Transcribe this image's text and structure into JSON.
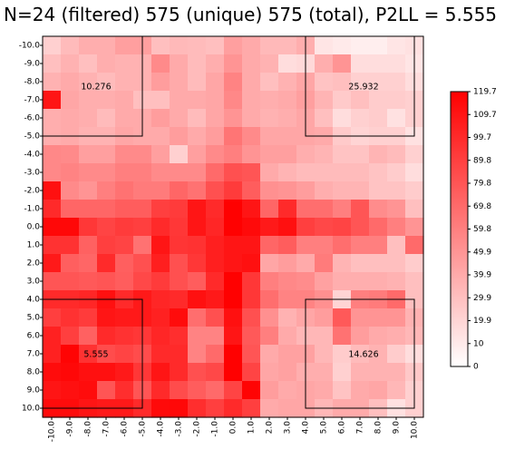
{
  "chart_data": {
    "type": "heatmap",
    "title": "N=24 (filtered) 575 (unique) 575 (total), P2LL = 5.555",
    "x_ticks": [
      "-10.0",
      "-9.0",
      "-8.0",
      "-7.0",
      "-6.0",
      "-5.0",
      "-4.0",
      "-3.0",
      "-2.0",
      "-1.0",
      "0.0",
      "1.0",
      "2.0",
      "3.0",
      "4.0",
      "5.0",
      "6.0",
      "7.0",
      "8.0",
      "9.0",
      "10.0"
    ],
    "y_ticks": [
      "-10.0",
      "-9.0",
      "-8.0",
      "-7.0",
      "-6.0",
      "-5.0",
      "-4.0",
      "-3.0",
      "-2.0",
      "-1.0",
      "0.0",
      "1.0",
      "2.0",
      "3.0",
      "4.0",
      "5.0",
      "6.0",
      "7.0",
      "8.0",
      "9.0",
      "10.0"
    ],
    "colorbar": {
      "ticks": [
        "119.7",
        "109.7",
        "99.7",
        "89.8",
        "79.8",
        "69.8",
        "59.8",
        "49.9",
        "39.9",
        "29.9",
        "19.9",
        "10",
        "0"
      ],
      "min": 0,
      "max": 119.7,
      "low_color": "#ffffff",
      "high_color": "#ff0000"
    },
    "quadrant_labels": [
      {
        "label": "10.276",
        "x_range": [
          -10,
          -5
        ],
        "y_range": [
          -10,
          -5
        ]
      },
      {
        "label": "25.932",
        "x_range": [
          5,
          10
        ],
        "y_range": [
          -10,
          -5
        ]
      },
      {
        "label": "5.555",
        "x_range": [
          -10,
          -5
        ],
        "y_range": [
          5,
          10
        ]
      },
      {
        "label": "14.626",
        "x_range": [
          5,
          10
        ],
        "y_range": [
          5,
          10
        ]
      }
    ],
    "values": [
      [
        22,
        32,
        38,
        38,
        45,
        45,
        30,
        33,
        32,
        30,
        45,
        40,
        33,
        33,
        38,
        12,
        10,
        8,
        8,
        12,
        14
      ],
      [
        30,
        36,
        30,
        38,
        36,
        36,
        55,
        40,
        32,
        38,
        50,
        40,
        36,
        16,
        18,
        38,
        50,
        16,
        16,
        16,
        12
      ],
      [
        36,
        40,
        36,
        32,
        36,
        36,
        46,
        40,
        32,
        42,
        58,
        40,
        30,
        36,
        42,
        28,
        30,
        22,
        22,
        22,
        16
      ],
      [
        110,
        42,
        38,
        38,
        40,
        30,
        30,
        40,
        40,
        42,
        56,
        40,
        38,
        40,
        45,
        35,
        25,
        30,
        24,
        24,
        22
      ],
      [
        38,
        40,
        38,
        32,
        40,
        40,
        46,
        40,
        32,
        42,
        50,
        40,
        36,
        38,
        42,
        30,
        16,
        22,
        24,
        14,
        22
      ],
      [
        38,
        40,
        36,
        36,
        42,
        40,
        40,
        46,
        40,
        46,
        65,
        55,
        42,
        42,
        42,
        40,
        25,
        20,
        22,
        22,
        14
      ],
      [
        56,
        55,
        45,
        45,
        55,
        55,
        45,
        22,
        45,
        55,
        60,
        50,
        45,
        45,
        38,
        35,
        28,
        28,
        35,
        32,
        22
      ],
      [
        56,
        58,
        55,
        55,
        60,
        60,
        55,
        55,
        55,
        70,
        82,
        80,
        40,
        35,
        32,
        32,
        32,
        32,
        28,
        24,
        16
      ],
      [
        112,
        55,
        50,
        60,
        66,
        62,
        62,
        72,
        66,
        82,
        92,
        76,
        52,
        50,
        46,
        38,
        35,
        35,
        28,
        28,
        24
      ],
      [
        100,
        72,
        72,
        72,
        76,
        76,
        90,
        92,
        110,
        100,
        119,
        110,
        72,
        100,
        68,
        68,
        60,
        80,
        54,
        50,
        30
      ],
      [
        116,
        116,
        94,
        88,
        92,
        90,
        100,
        94,
        110,
        102,
        119,
        115,
        108,
        112,
        90,
        86,
        88,
        80,
        70,
        60,
        50
      ],
      [
        96,
        96,
        74,
        90,
        88,
        66,
        110,
        95,
        96,
        105,
        110,
        110,
        72,
        76,
        60,
        60,
        68,
        60,
        60,
        30,
        70
      ],
      [
        108,
        75,
        72,
        100,
        75,
        82,
        105,
        82,
        94,
        105,
        110,
        112,
        42,
        46,
        40,
        62,
        35,
        30,
        30,
        30,
        24
      ],
      [
        80,
        80,
        78,
        80,
        76,
        86,
        92,
        82,
        76,
        100,
        119,
        94,
        60,
        56,
        54,
        44,
        38,
        38,
        38,
        36,
        30
      ],
      [
        100,
        100,
        102,
        112,
        100,
        108,
        102,
        100,
        112,
        108,
        119,
        94,
        68,
        58,
        58,
        52,
        20,
        60,
        62,
        70,
        30
      ],
      [
        90,
        96,
        92,
        110,
        108,
        108,
        104,
        114,
        68,
        82,
        112,
        82,
        52,
        36,
        42,
        46,
        78,
        50,
        50,
        50,
        36
      ],
      [
        104,
        90,
        74,
        100,
        96,
        94,
        102,
        98,
        58,
        58,
        110,
        78,
        60,
        40,
        34,
        34,
        66,
        46,
        40,
        38,
        34
      ],
      [
        104,
        118,
        96,
        84,
        88,
        84,
        100,
        100,
        58,
        70,
        119,
        80,
        40,
        44,
        44,
        34,
        24,
        32,
        36,
        24,
        16
      ],
      [
        114,
        116,
        112,
        112,
        108,
        94,
        110,
        100,
        82,
        86,
        119,
        88,
        42,
        44,
        38,
        38,
        22,
        36,
        36,
        36,
        26
      ],
      [
        110,
        112,
        114,
        80,
        98,
        80,
        100,
        84,
        76,
        70,
        88,
        118,
        46,
        40,
        42,
        40,
        28,
        40,
        42,
        34,
        22
      ],
      [
        114,
        114,
        110,
        108,
        108,
        100,
        115,
        116,
        98,
        90,
        100,
        90,
        40,
        42,
        42,
        34,
        40,
        40,
        30,
        14,
        22
      ]
    ]
  }
}
